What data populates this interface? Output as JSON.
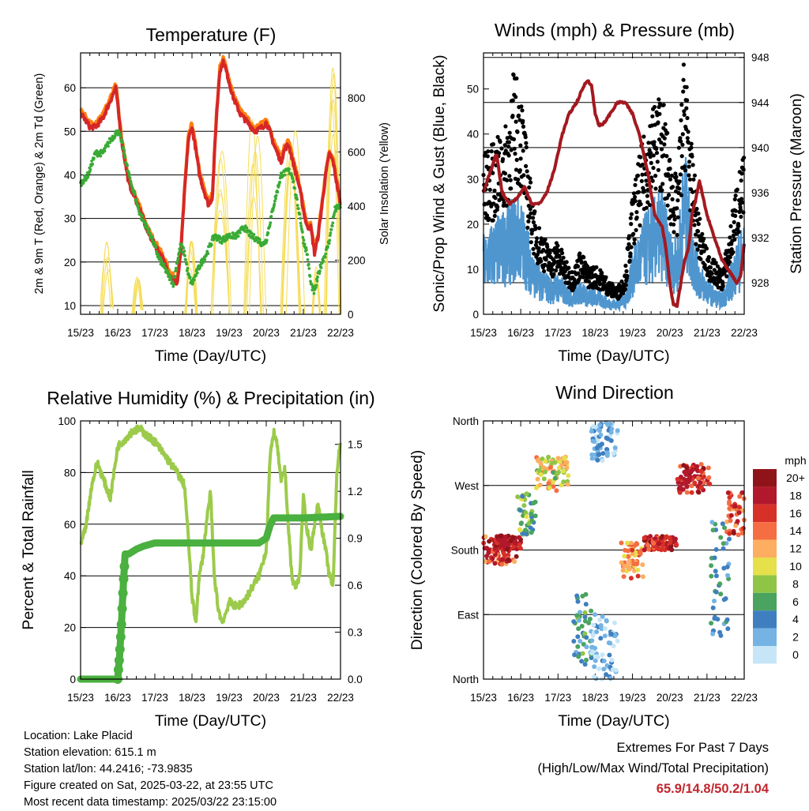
{
  "days": [
    "15/23",
    "16/23",
    "17/23",
    "18/23",
    "19/23",
    "20/23",
    "21/23",
    "22/23"
  ],
  "xlabel": "Time (Day/UTC)",
  "colors": {
    "temp2m": "#d62728",
    "temp9m": "#ff7f0e",
    "dew": "#3aaa35",
    "solar": "#f5dd5a",
    "gust": "#000000",
    "sonic": "#4f96cf",
    "pressure": "#a3191f",
    "rh": "#9ccb4b",
    "precip": "#4ab03f",
    "extremes": "#c1272d"
  },
  "chart_data": [
    {
      "type": "line",
      "title": "Temperature (F)",
      "ylabel": "2m & 9m T (Red, Orange) & 2m Td (Green)",
      "y2label": "Solar Insolation (Yellow)",
      "ylim": [
        8,
        68
      ],
      "yticks": [
        10,
        20,
        30,
        40,
        50,
        60
      ],
      "y2lim": [
        0,
        966
      ],
      "y2ticks": [
        0,
        200,
        400,
        600,
        800
      ],
      "series": [
        {
          "axis": "left",
          "color": "temp2m",
          "width": 4,
          "x": [
            0,
            0.1,
            0.25,
            0.4,
            0.6,
            0.8,
            0.95,
            1.0,
            1.1,
            1.3,
            1.6,
            1.8,
            2.0,
            2.2,
            2.4,
            2.6,
            2.7,
            2.8,
            2.9,
            3.0,
            3.1,
            3.2,
            3.3,
            3.45,
            3.55,
            3.65,
            3.75,
            3.85,
            3.95,
            4.1,
            4.3,
            4.5,
            4.7,
            4.9,
            5.0,
            5.1,
            5.2,
            5.3,
            5.4,
            5.5,
            5.6,
            5.75,
            5.9,
            6.0,
            6.1,
            6.2,
            6.3,
            6.4,
            6.5,
            6.6,
            6.7,
            6.8,
            6.9,
            7.0
          ],
          "y": [
            54,
            53,
            51,
            51,
            53,
            57,
            60,
            56,
            48,
            38,
            32,
            27,
            24,
            21,
            17,
            15,
            22,
            36,
            48,
            51,
            46,
            40,
            37,
            33,
            35,
            52,
            64,
            66,
            63,
            58,
            54,
            52,
            50,
            51,
            52,
            50,
            47,
            45,
            43,
            46,
            47,
            42,
            37,
            32,
            28,
            28,
            22,
            26,
            33,
            40,
            45,
            43,
            38,
            33
          ]
        },
        {
          "axis": "left",
          "color": "dew",
          "width": 3,
          "x": [
            0,
            0.2,
            0.4,
            0.6,
            0.8,
            1.0,
            1.1,
            1.3,
            1.6,
            1.9,
            2.1,
            2.3,
            2.5,
            2.6,
            2.7,
            2.8,
            2.9,
            3.0,
            3.1,
            3.2,
            3.4,
            3.6,
            3.8,
            4.0,
            4.2,
            4.4,
            4.6,
            4.8,
            4.9,
            5.0,
            5.2,
            5.4,
            5.6,
            5.7,
            5.8,
            5.9,
            6.0,
            6.1,
            6.2,
            6.3,
            6.4,
            6.5,
            6.6,
            6.7,
            6.85,
            7.0
          ],
          "y": [
            38,
            40,
            45,
            45,
            48,
            50,
            48,
            40,
            31,
            26,
            21,
            18,
            15,
            20,
            24,
            22,
            17,
            15,
            17,
            19,
            22,
            26,
            25,
            26,
            26,
            28,
            26,
            25,
            24,
            25,
            33,
            40,
            41,
            40,
            35,
            31,
            25,
            22,
            15,
            13,
            17,
            20,
            22,
            25,
            32,
            33
          ]
        },
        {
          "axis": "right",
          "color": "solar",
          "width": 1,
          "pulses": [
            {
              "c": 0.7,
              "w": 0.3,
              "h": 300
            },
            {
              "c": 1.55,
              "w": 0.25,
              "h": 150
            },
            {
              "c": 2.95,
              "w": 0.3,
              "h": 280
            },
            {
              "c": 3.8,
              "w": 0.5,
              "h": 620
            },
            {
              "c": 4.7,
              "w": 0.45,
              "h": 750
            },
            {
              "c": 5.7,
              "w": 0.5,
              "h": 800
            },
            {
              "c": 6.8,
              "w": 0.4,
              "h": 950
            },
            {
              "c": 6.35,
              "w": 0.2,
              "h": 180
            }
          ]
        }
      ]
    },
    {
      "type": "scatter",
      "title": "Winds (mph) & Pressure (mb)",
      "ylabel": "Sonic/Prop Wind & Gust (Blue, Black)",
      "y2label": "Station Pressure (Maroon)",
      "ylim": [
        0,
        58
      ],
      "yticks": [
        0,
        10,
        20,
        30,
        40,
        50
      ],
      "y2lim": [
        925.2,
        948.4
      ],
      "y2ticks": [
        928,
        932,
        936,
        940,
        944,
        948
      ],
      "series": [
        {
          "axis": "left",
          "color": "gust",
          "kind": "points",
          "x": [
            0,
            0.3,
            0.6,
            0.8,
            1.0,
            1.2,
            1.4,
            1.6,
            1.8,
            2.0,
            2.2,
            2.4,
            2.6,
            2.8,
            3.0,
            3.2,
            3.4,
            3.6,
            3.8,
            4.0,
            4.2,
            4.4,
            4.6,
            4.8,
            5.0,
            5.2,
            5.4,
            5.6,
            5.8,
            6.0,
            6.2,
            6.4,
            6.6,
            6.8,
            7.0
          ],
          "y": [
            30,
            32,
            35,
            45,
            43,
            28,
            18,
            15,
            12,
            14,
            10,
            8,
            12,
            9,
            9,
            8,
            6,
            5,
            8,
            22,
            30,
            36,
            40,
            42,
            30,
            25,
            50,
            30,
            18,
            12,
            10,
            8,
            15,
            25,
            30
          ]
        },
        {
          "axis": "left",
          "color": "sonic",
          "kind": "band",
          "x": [
            0,
            0.3,
            0.6,
            0.8,
            1.0,
            1.2,
            1.4,
            1.6,
            1.8,
            2.0,
            2.2,
            2.4,
            2.6,
            2.8,
            3.0,
            3.2,
            3.4,
            3.6,
            3.8,
            4.0,
            4.2,
            4.4,
            4.6,
            4.8,
            5.0,
            5.2,
            5.4,
            5.6,
            5.8,
            6.0,
            6.2,
            6.4,
            6.6,
            6.8,
            7.0
          ],
          "y": [
            15,
            18,
            20,
            22,
            22,
            16,
            10,
            9,
            7,
            8,
            6,
            5,
            7,
            5,
            5,
            4,
            3,
            3,
            4,
            12,
            16,
            20,
            22,
            24,
            16,
            14,
            32,
            18,
            10,
            7,
            5,
            4,
            8,
            14,
            18
          ]
        },
        {
          "axis": "right",
          "color": "pressure",
          "kind": "line",
          "width": 4,
          "x": [
            0,
            0.2,
            0.35,
            0.5,
            0.7,
            0.9,
            1.1,
            1.3,
            1.5,
            1.7,
            1.9,
            2.1,
            2.3,
            2.5,
            2.7,
            2.8,
            2.9,
            3.0,
            3.1,
            3.2,
            3.4,
            3.6,
            3.8,
            4.0,
            4.2,
            4.4,
            4.6,
            4.8,
            4.9,
            5.0,
            5.1,
            5.2,
            5.4,
            5.5,
            5.6,
            5.8,
            6.0,
            6.2,
            6.4,
            6.6,
            6.8,
            6.9,
            7.0
          ],
          "y": [
            936,
            938,
            939.5,
            936,
            935,
            935.5,
            936.5,
            935,
            935,
            936,
            938,
            941,
            943,
            944,
            945.5,
            946,
            945.5,
            943,
            942,
            942,
            943,
            944,
            944,
            943,
            941,
            938,
            934,
            933,
            931,
            928,
            926,
            926,
            930,
            931,
            934,
            937,
            934,
            932,
            930,
            929,
            928,
            928.5,
            931.5
          ]
        }
      ]
    },
    {
      "type": "line",
      "title": "Relative Humidity (%) & Precipitation (in)",
      "ylabel": "Percent & Total Rainfall",
      "ylim": [
        0,
        100
      ],
      "yticks": [
        0,
        20,
        40,
        60,
        80,
        100
      ],
      "y2lim": [
        0,
        1.65
      ],
      "y2ticks": [
        "0.0",
        "0.3",
        "0.6",
        "0.9",
        "1.2",
        "1.5"
      ],
      "y2tickvals": [
        0,
        0.3,
        0.6,
        0.9,
        1.2,
        1.5
      ],
      "series": [
        {
          "axis": "left",
          "color": "rh",
          "width": 4,
          "x": [
            0,
            0.15,
            0.3,
            0.45,
            0.6,
            0.8,
            1.0,
            1.2,
            1.4,
            1.6,
            1.8,
            2.0,
            2.2,
            2.4,
            2.6,
            2.8,
            2.9,
            3.0,
            3.1,
            3.2,
            3.3,
            3.4,
            3.5,
            3.6,
            3.7,
            3.8,
            3.9,
            4.0,
            4.2,
            4.4,
            4.6,
            4.8,
            5.0,
            5.1,
            5.2,
            5.3,
            5.4,
            5.5,
            5.6,
            5.7,
            5.8,
            5.9,
            6.0,
            6.1,
            6.2,
            6.3,
            6.4,
            6.5,
            6.6,
            6.7,
            6.8,
            6.9,
            7.0
          ],
          "y": [
            52,
            60,
            75,
            84,
            78,
            70,
            90,
            93,
            96,
            97,
            94,
            92,
            88,
            84,
            80,
            75,
            55,
            32,
            22,
            40,
            48,
            62,
            72,
            40,
            28,
            22,
            25,
            30,
            28,
            30,
            35,
            40,
            50,
            85,
            96,
            90,
            76,
            82,
            58,
            38,
            36,
            40,
            70,
            58,
            50,
            60,
            68,
            58,
            50,
            40,
            36,
            80,
            92
          ]
        },
        {
          "axis": "right",
          "color": "precip",
          "width": 9,
          "x": [
            0,
            1.0,
            1.05,
            1.1,
            1.15,
            1.2,
            1.3,
            1.5,
            1.7,
            2.0,
            3.0,
            4.0,
            4.8,
            5.0,
            5.1,
            5.2,
            5.5,
            6.0,
            7.0
          ],
          "y": [
            0,
            0,
            0.15,
            0.35,
            0.6,
            0.8,
            0.8,
            0.83,
            0.85,
            0.87,
            0.87,
            0.87,
            0.87,
            0.9,
            0.98,
            1.03,
            1.03,
            1.03,
            1.04
          ]
        }
      ]
    },
    {
      "type": "scatter",
      "title": "Wind Direction",
      "ylabel": "Direction (Colored By Speed)",
      "ylim": [
        0,
        360
      ],
      "ytick_labels": [
        "North",
        "East",
        "South",
        "West",
        "North"
      ],
      "yticks": [
        0,
        90,
        180,
        270,
        360
      ],
      "colorbar_title": "mph",
      "colorbar_labels": [
        "20+",
        "18",
        "16",
        "14",
        "12",
        "10",
        "8",
        "6",
        "4",
        "2",
        "0"
      ],
      "colorbar_colors": [
        "#8f1419",
        "#b2182b",
        "#d73027",
        "#f46d43",
        "#fdae61",
        "#e6e04a",
        "#8fc547",
        "#4aa35f",
        "#3f7fbf",
        "#74b3e3",
        "#c6e6f7"
      ],
      "clusters": [
        {
          "x0": 0,
          "x1": 0.9,
          "d0": 160,
          "d1": 200,
          "s0": 12,
          "s1": 20
        },
        {
          "x0": 0.3,
          "x1": 1.0,
          "d0": 180,
          "d1": 200,
          "s0": 16,
          "s1": 20
        },
        {
          "x0": 0.9,
          "x1": 1.4,
          "d0": 200,
          "d1": 260,
          "s0": 3,
          "s1": 10
        },
        {
          "x0": 1.4,
          "x1": 2.3,
          "d0": 260,
          "d1": 310,
          "s0": 6,
          "s1": 14
        },
        {
          "x0": 2.4,
          "x1": 2.9,
          "d0": 20,
          "d1": 120,
          "s0": 2,
          "s1": 8
        },
        {
          "x0": 2.9,
          "x1": 3.6,
          "d0": 0,
          "d1": 90,
          "s0": 0,
          "s1": 4
        },
        {
          "x0": 2.9,
          "x1": 3.6,
          "d0": 300,
          "d1": 360,
          "s0": 0,
          "s1": 4
        },
        {
          "x0": 3.7,
          "x1": 4.3,
          "d0": 140,
          "d1": 190,
          "s0": 10,
          "s1": 16
        },
        {
          "x0": 4.3,
          "x1": 5.2,
          "d0": 180,
          "d1": 200,
          "s0": 14,
          "s1": 20
        },
        {
          "x0": 5.2,
          "x1": 6.1,
          "d0": 260,
          "d1": 300,
          "s0": 14,
          "s1": 20
        },
        {
          "x0": 6.1,
          "x1": 6.6,
          "d0": 60,
          "d1": 220,
          "s0": 2,
          "s1": 6
        },
        {
          "x0": 6.5,
          "x1": 7.0,
          "d0": 200,
          "d1": 260,
          "s0": 12,
          "s1": 20
        }
      ]
    }
  ],
  "footer": {
    "location": "Location: Lake Placid",
    "elevation": "Station elevation: 615.1 m",
    "latlon": "Station lat/lon: 44.2416; -73.9835",
    "created": "Figure created on Sat, 2025-03-22, at 23:55 UTC",
    "recent": "Most recent data timestamp: 2025/03/22 23:15:00"
  },
  "extremes": {
    "title": "Extremes For Past 7 Days",
    "subtitle": "(High/Low/Max Wind/Total Precipitation)",
    "values": "65.9/14.8/50.2/1.04"
  }
}
